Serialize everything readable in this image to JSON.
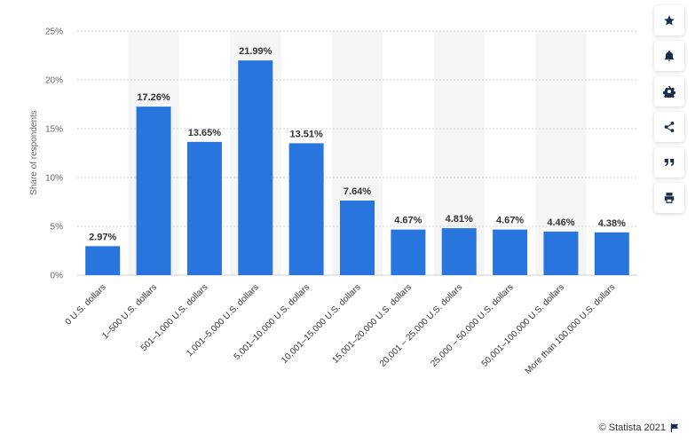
{
  "chart_data": {
    "type": "bar",
    "ylabel": "Share of respondents",
    "ylim": [
      0,
      25
    ],
    "yticks": [
      "0%",
      "5%",
      "10%",
      "15%",
      "20%",
      "25%"
    ],
    "ytick_values": [
      0,
      5,
      10,
      15,
      20,
      25
    ],
    "categories": [
      "0 U.S. dollars",
      "1–500 U.S. dollars",
      "501–1,000 U.S. dollars",
      "1,001–5,000 U.S. dollars",
      "5,001–10,000 U.S. dollars",
      "10,001–15,000 U.S. dollars",
      "15,001–20,000 U.S. dollars",
      "20,001 – 25,000 U.S. dollars",
      "25,000 – 50,000 U.S. dollars",
      "50,001–100,000 U.S. dollars",
      "More than 100,000 U.S. dollars"
    ],
    "values": [
      2.97,
      17.26,
      13.65,
      21.99,
      13.51,
      7.64,
      4.67,
      4.81,
      4.67,
      4.46,
      4.38
    ],
    "value_labels": [
      "2.97%",
      "17.26%",
      "13.65%",
      "21.99%",
      "13.51%",
      "7.64%",
      "4.67%",
      "4.81%",
      "4.67%",
      "4.46%",
      "4.38%"
    ],
    "grid": true,
    "colors": {
      "bar": "#2876dd",
      "band": "#f5f5f5",
      "grid": "#d0d0d0"
    }
  },
  "toolbar": {
    "icons": [
      "star-icon",
      "bell-icon",
      "gear-icon",
      "share-icon",
      "quote-icon",
      "print-icon"
    ]
  },
  "footer": {
    "copyright": "© Statista 2021"
  }
}
